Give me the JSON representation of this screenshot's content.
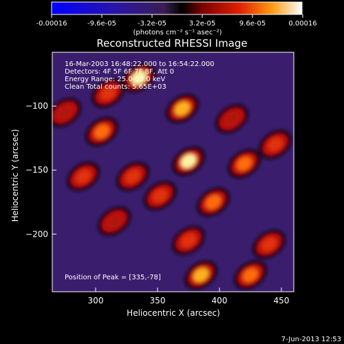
{
  "chart_data": {
    "type": "heatmap",
    "title": "Reconstructed RHESSI Image",
    "xlabel": "Heliocentric X (arcsec)",
    "ylabel": "Heliocentric Y (arcsec)",
    "xlim": [
      265,
      460
    ],
    "ylim": [
      -245,
      -58
    ],
    "xticks": [
      300,
      350,
      400,
      450
    ],
    "yticks": [
      -100,
      -150,
      -200
    ],
    "colorbar": {
      "range": [
        -0.00016,
        0.00016
      ],
      "ticks": [
        "-0.00016",
        "-9.6e-05",
        "-3.2e-05",
        "3.2e-05",
        "9.6e-05",
        "0.00016"
      ],
      "unit_text": "(photons cm⁻² s⁻¹ asec⁻²)"
    },
    "annotations": {
      "time_range": "16-Mar-2003 16:48:22.000 to 16:54:22.000",
      "detectors": "Detectors: 4F 5F 6F 7F 8F, Att 0",
      "energy": "Energy Range: 25.0-50.0 keV",
      "clean": "Clean     Total counts: 5.65E+03",
      "peak": "Position of Peak = [335,-78]"
    },
    "peaks": [
      {
        "x": 335,
        "y": -78,
        "v": 1.0
      },
      {
        "x": 375,
        "y": -143,
        "v": 0.9
      },
      {
        "x": 370,
        "y": -102,
        "v": 0.85
      },
      {
        "x": 305,
        "y": -120,
        "v": 0.6
      },
      {
        "x": 420,
        "y": -145,
        "v": 0.65
      },
      {
        "x": 395,
        "y": -175,
        "v": 0.6
      },
      {
        "x": 352,
        "y": -170,
        "v": 0.55
      },
      {
        "x": 330,
        "y": -155,
        "v": 0.55
      },
      {
        "x": 290,
        "y": -155,
        "v": 0.5
      },
      {
        "x": 315,
        "y": -190,
        "v": 0.45
      },
      {
        "x": 375,
        "y": -205,
        "v": 0.5
      },
      {
        "x": 440,
        "y": -208,
        "v": 0.55
      },
      {
        "x": 385,
        "y": -232,
        "v": 0.75
      },
      {
        "x": 425,
        "y": -232,
        "v": 0.7
      },
      {
        "x": 310,
        "y": -90,
        "v": 0.5
      },
      {
        "x": 410,
        "y": -110,
        "v": 0.45
      },
      {
        "x": 445,
        "y": -130,
        "v": 0.5
      },
      {
        "x": 275,
        "y": -105,
        "v": 0.35
      }
    ]
  },
  "footer": {
    "timestamp": "7-Jun-2013 12:53"
  }
}
